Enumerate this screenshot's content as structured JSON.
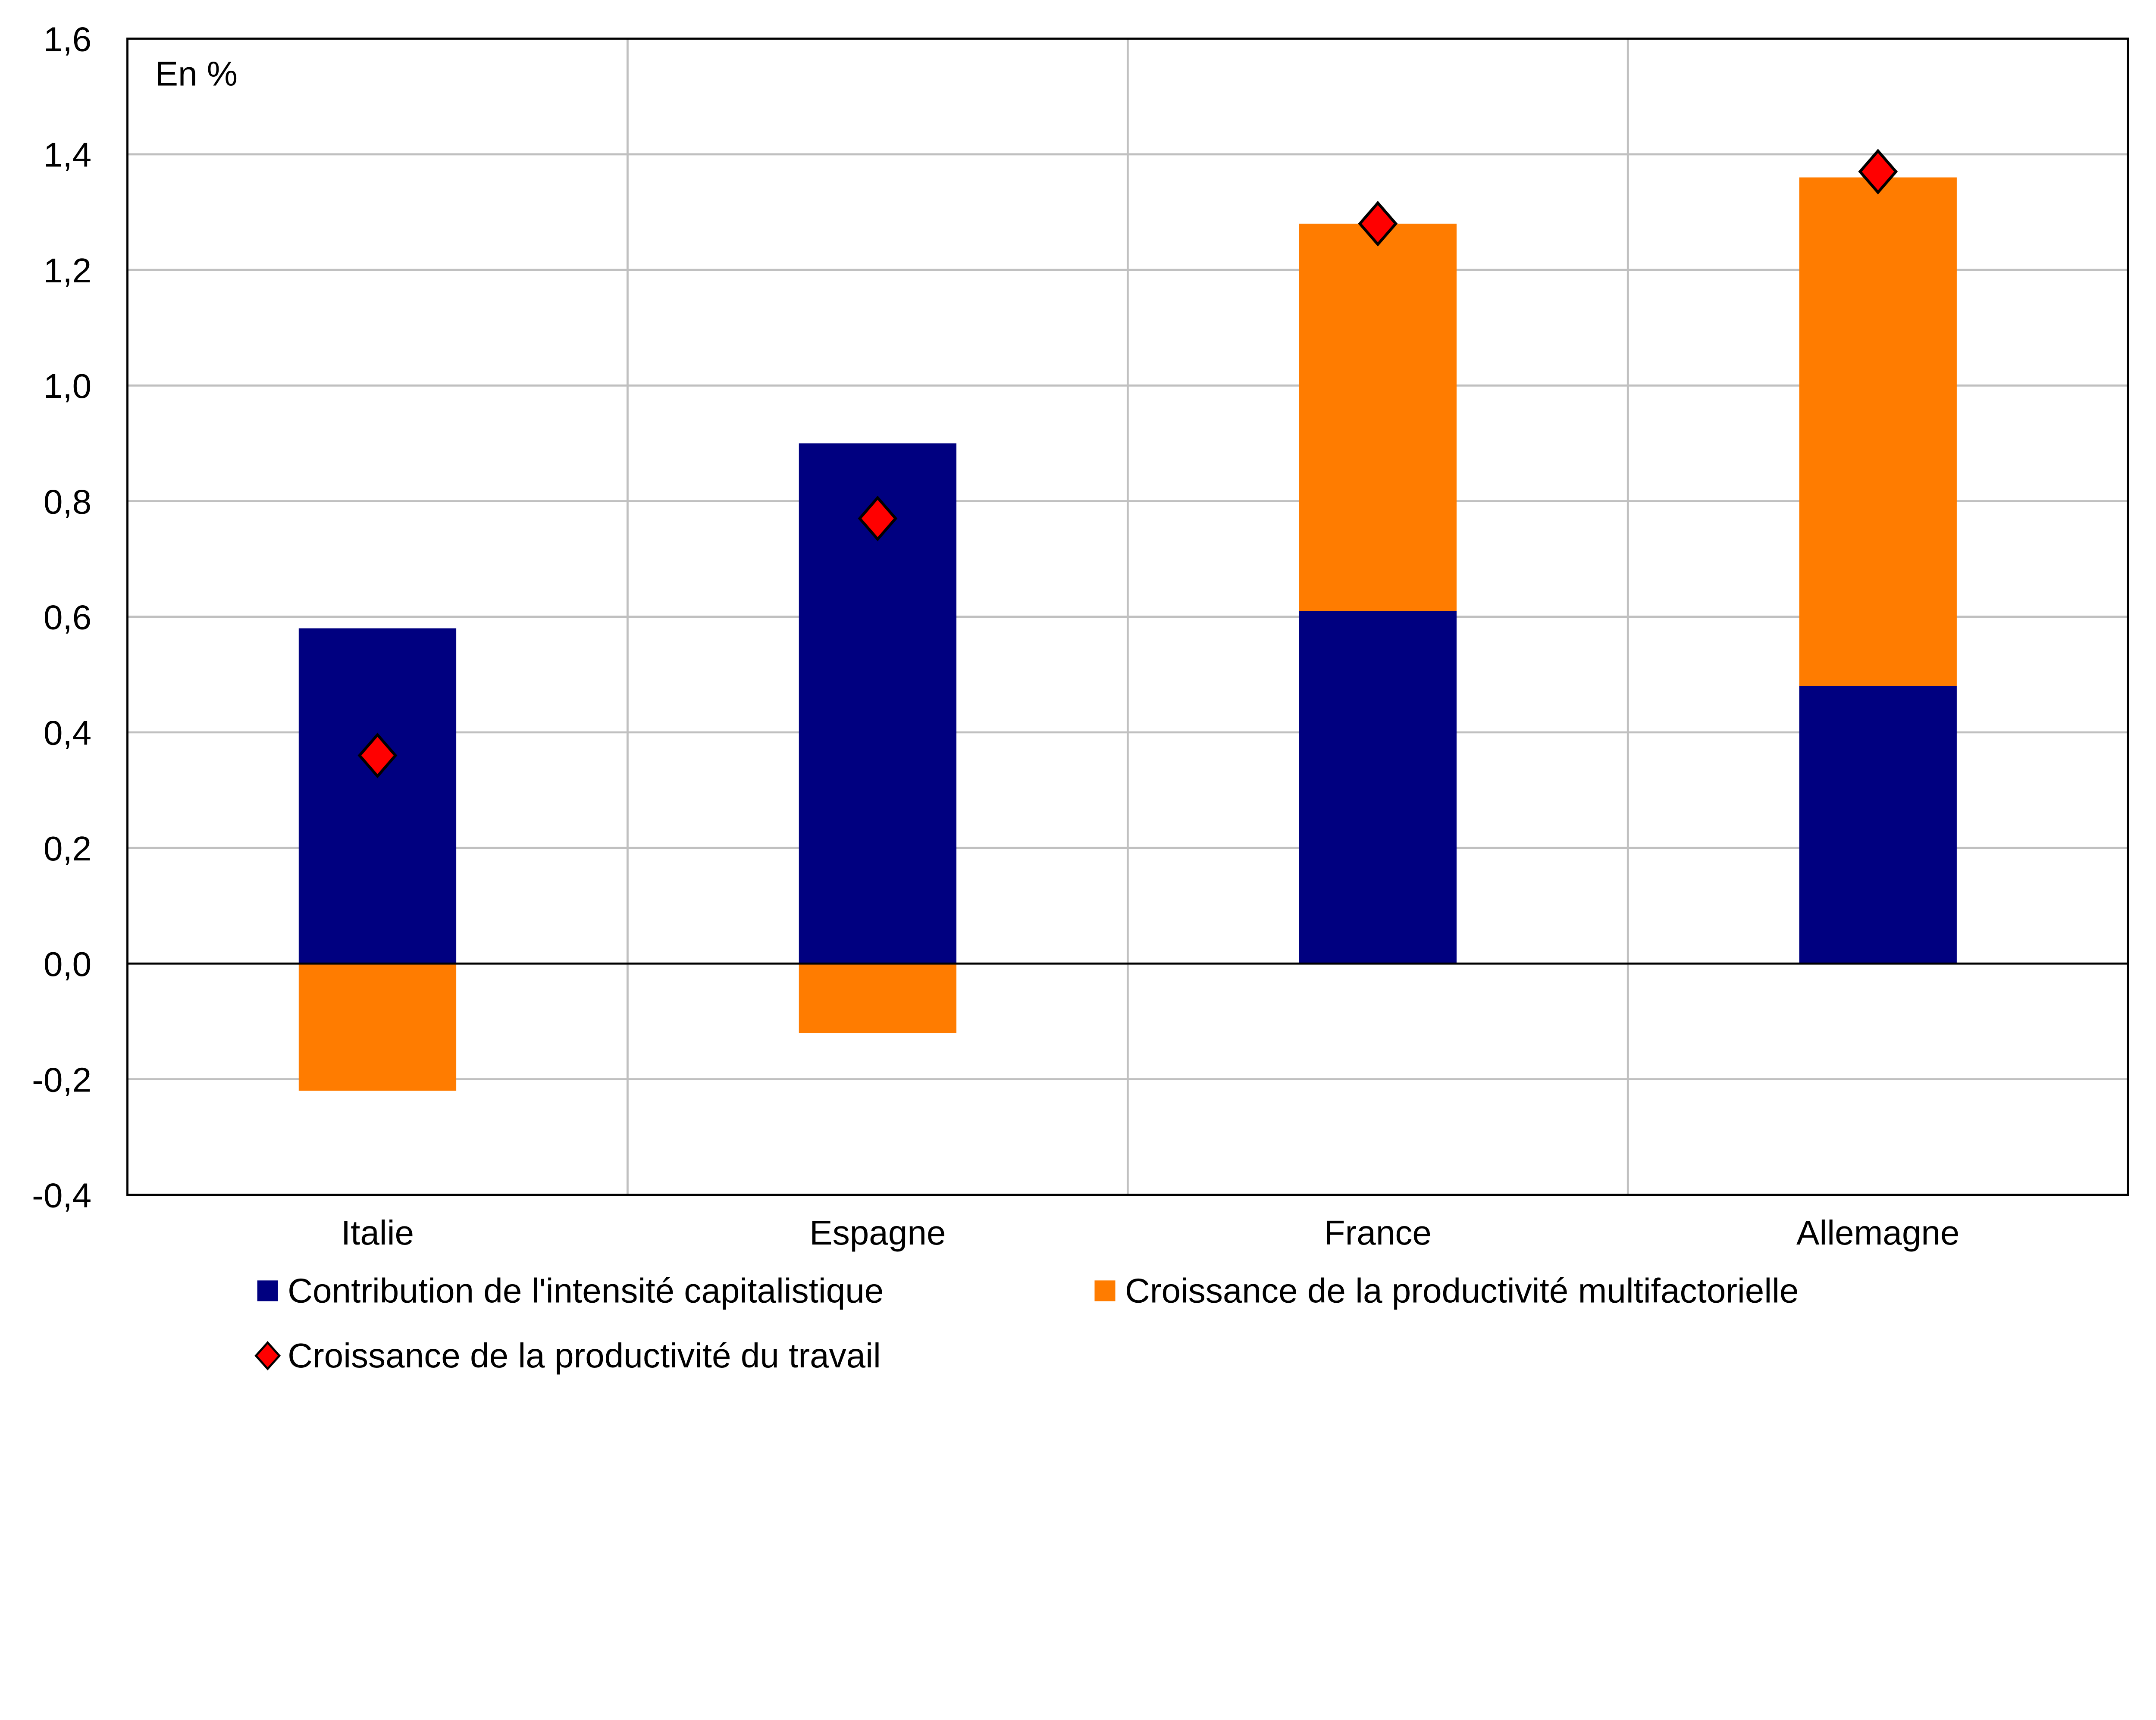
{
  "chart_data": {
    "type": "bar",
    "stacked": true,
    "unit_label": "En %",
    "categories": [
      "Italie",
      "Espagne",
      "France",
      "Allemagne"
    ],
    "series": [
      {
        "name": "Contribution de l'intensité capitalistique",
        "kind": "bar",
        "color": "#000080",
        "values": [
          0.58,
          0.9,
          0.61,
          0.48
        ]
      },
      {
        "name": "Croissance de la productivité multifactorielle",
        "kind": "bar",
        "color": "#FF7C00",
        "values": [
          -0.22,
          -0.12,
          0.67,
          0.88
        ]
      },
      {
        "name": "Croissance de la productivité du travail",
        "kind": "marker",
        "marker": "diamond",
        "color": "#FF0000",
        "values": [
          0.36,
          0.77,
          1.28,
          1.37
        ]
      }
    ],
    "ylim": [
      -0.4,
      1.6
    ],
    "yticks": [
      "-0,4",
      "-0,2",
      "0,0",
      "0,2",
      "0,4",
      "0,6",
      "0,8",
      "1,0",
      "1,2",
      "1,4",
      "1,6"
    ],
    "ytick_values": [
      -0.4,
      -0.2,
      0,
      0.2,
      0.4,
      0.6,
      0.8,
      1.0,
      1.2,
      1.4,
      1.6
    ],
    "grid": true,
    "legend_position": "bottom",
    "title": "",
    "xlabel": "",
    "ylabel": ""
  }
}
